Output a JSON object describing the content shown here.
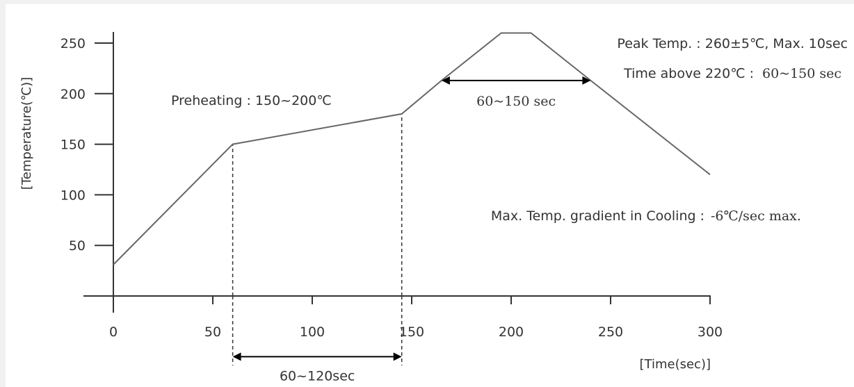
{
  "colors": {
    "background": "#f1f1f1",
    "panel": "#ffffff",
    "line": "#666666",
    "text": "#333333"
  },
  "chart_data": {
    "type": "line",
    "title": "",
    "xlabel": "[Time(sec)]",
    "ylabel": "[Temperature(℃)]",
    "xlim": [
      0,
      300
    ],
    "ylim": [
      0,
      250
    ],
    "xticks": [
      "0",
      "50",
      "100",
      "150",
      "200",
      "250",
      "300"
    ],
    "yticks": [
      "50",
      "100",
      "150",
      "200",
      "250"
    ],
    "grid": false,
    "series": [
      {
        "points": [
          [
            0,
            31
          ],
          [
            60,
            150
          ],
          [
            145,
            180
          ],
          [
            165,
            213
          ],
          [
            195,
            260
          ],
          [
            210,
            260
          ],
          [
            240,
            213
          ],
          [
            300,
            120
          ]
        ]
      }
    ],
    "guides": [
      {
        "x": 60,
        "y_from": 0,
        "y_to": 150
      },
      {
        "x": 145,
        "y_from": 0,
        "y_to": 180
      }
    ],
    "annotations": {
      "preheating": "Preheating : 150~200℃",
      "peak": "Peak Temp. : 260±5℃,  Max. 10sec",
      "time_above_label": "Time above 220℃ :",
      "time_above_value": "60~150 sec",
      "span_peak": "60~150 sec",
      "span_preheat": "60~120sec",
      "cooling_label": "Max. Temp. gradient in Cooling :",
      "cooling_value": "-6℃/sec max."
    },
    "spans": [
      {
        "label_key": "span_peak",
        "x_from": 165,
        "x_to": 240,
        "y": 213
      },
      {
        "label_key": "span_preheat",
        "x_from": 60,
        "x_to": 145,
        "y": -60
      }
    ]
  }
}
